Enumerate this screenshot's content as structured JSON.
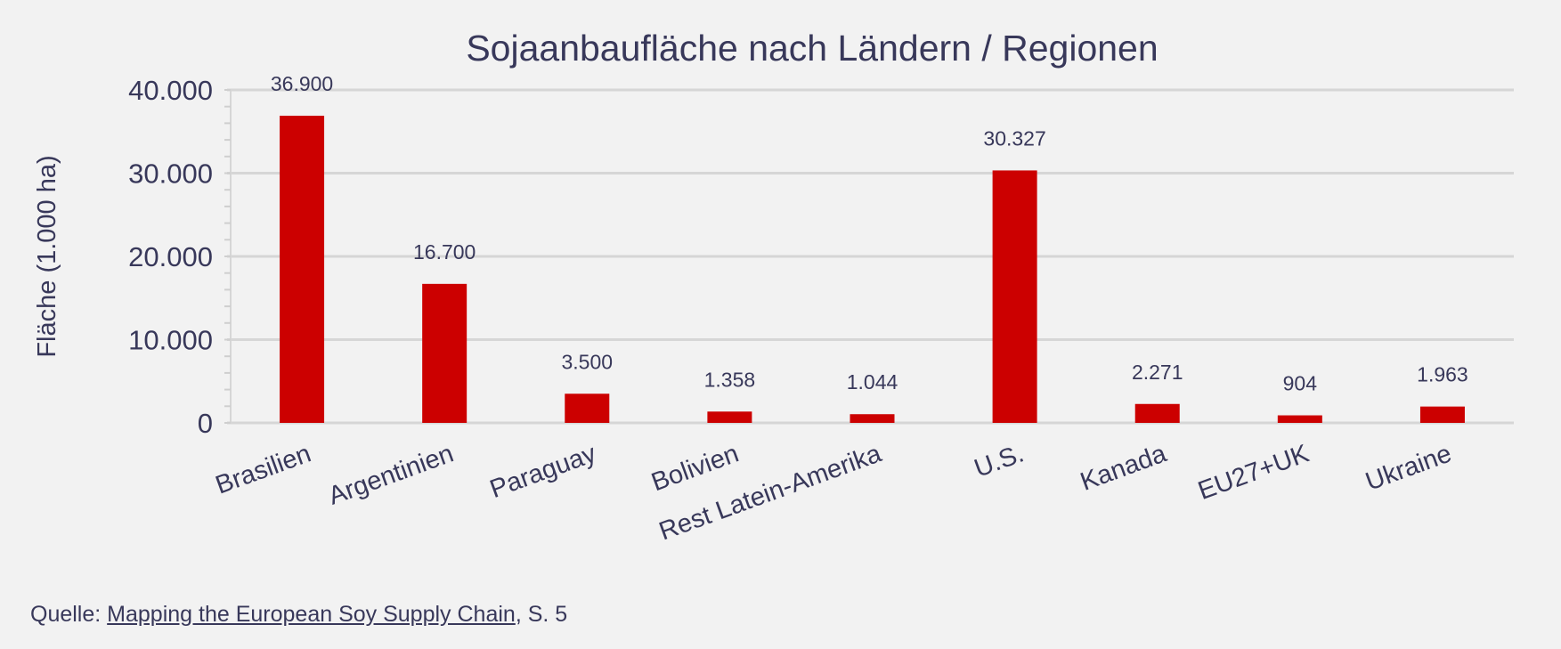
{
  "chart_data": {
    "type": "bar",
    "title": "Sojaanbaufläche nach Ländern / Regionen",
    "xlabel": "",
    "ylabel": "Fläche (1.000 ha)",
    "ylim": [
      0,
      40000
    ],
    "yticks": [
      0,
      10000,
      20000,
      30000,
      40000
    ],
    "ytick_labels": [
      "0",
      "10.000",
      "20.000",
      "30.000",
      "40.000"
    ],
    "grid": true,
    "categories": [
      "Brasilien",
      "Argentinien",
      "Paraguay",
      "Bolivien",
      "Rest Latein-Amerika",
      "U.S.",
      "Kanada",
      "EU27+UK",
      "Ukraine"
    ],
    "values": [
      36900,
      16700,
      3500,
      1358,
      1044,
      30327,
      2271,
      904,
      1963
    ],
    "data_labels": [
      "36.900",
      "16.700",
      "3.500",
      "1.358",
      "1.044",
      "30.327",
      "2.271",
      "904",
      "1.963"
    ],
    "bar_color": "#cc0000"
  },
  "footer": {
    "prefix": "Quelle: ",
    "link_text": "Mapping the European Soy Supply Chain",
    "suffix": ", S. 5"
  }
}
